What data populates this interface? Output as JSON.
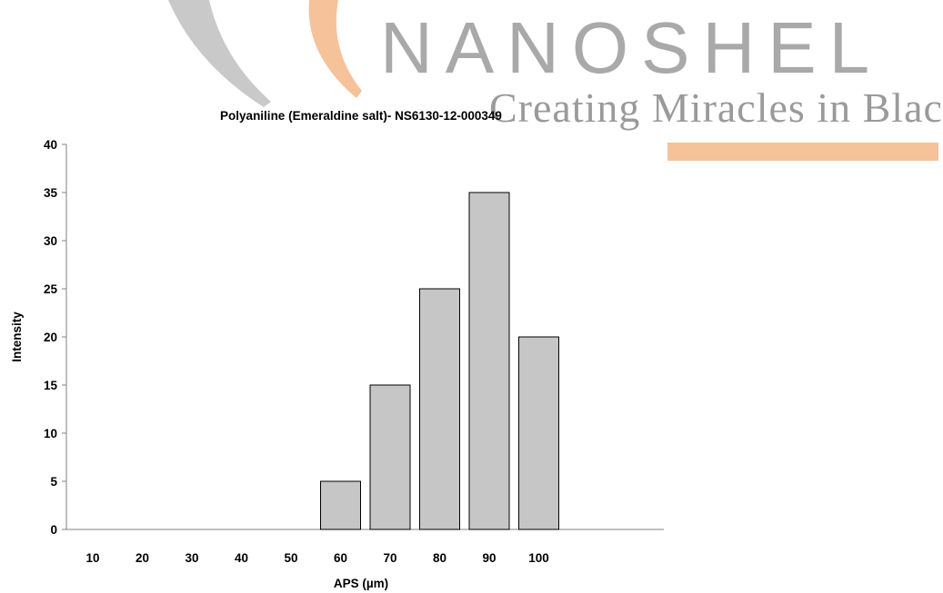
{
  "watermark": {
    "brand": "NANOSHEL",
    "tagline": "Creating Miracles in Black"
  },
  "colors": {
    "bar_fill": "#c6c6c6",
    "bar_stroke": "#000000",
    "logo_gray": "#a9a9a9",
    "logo_orange": "#f5c29a"
  },
  "chart_data": {
    "type": "bar",
    "title": "Polyaniline (Emeraldine salt)- NS6130-12-000349",
    "xlabel": "APS (µm)",
    "ylabel": "Intensity",
    "categories": [
      "10",
      "20",
      "30",
      "40",
      "50",
      "60",
      "70",
      "80",
      "90",
      "100"
    ],
    "values": [
      0,
      0,
      0,
      0,
      0,
      5,
      15,
      25,
      35,
      20
    ],
    "ylim": [
      0,
      40
    ],
    "yticks": [
      0,
      5,
      10,
      15,
      20,
      25,
      30,
      35,
      40
    ],
    "grid": false,
    "legend": "none"
  }
}
